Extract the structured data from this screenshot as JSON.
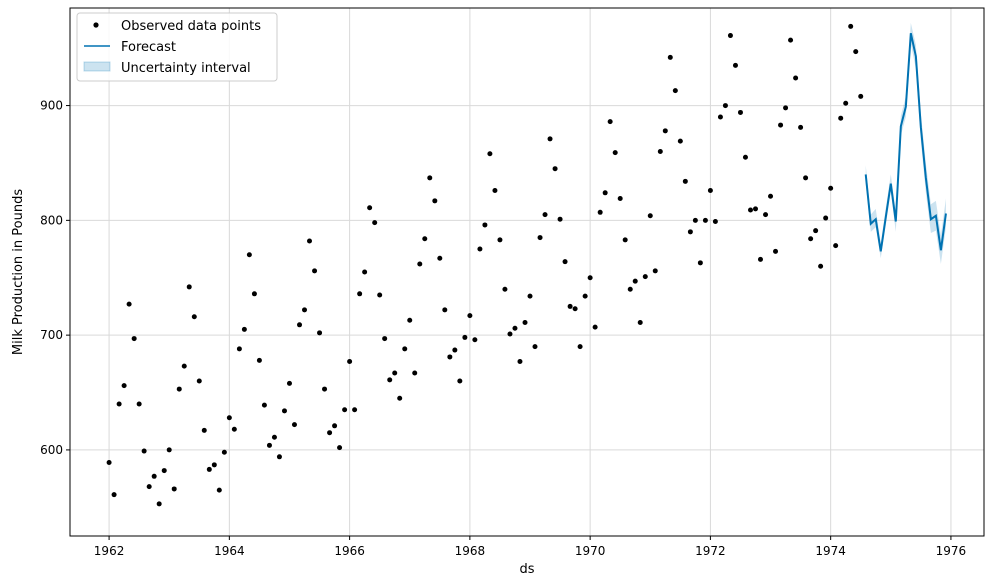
{
  "chart_data": {
    "type": "line",
    "xlabel": "ds",
    "ylabel": "Milk Production in Pounds",
    "xlim": [
      1961.35,
      1976.55
    ],
    "ylim": [
      525,
      985
    ],
    "x_ticks": [
      1962,
      1964,
      1966,
      1968,
      1970,
      1972,
      1974,
      1976
    ],
    "x_tick_labels": [
      "1962",
      "1964",
      "1966",
      "1968",
      "1970",
      "1972",
      "1974",
      "1976"
    ],
    "y_ticks": [
      600,
      700,
      800,
      900
    ],
    "y_tick_labels": [
      "600",
      "700",
      "800",
      "900"
    ],
    "grid": true,
    "legend_position": "top-left",
    "legend": {
      "observed": "Observed data points",
      "forecast": "Forecast",
      "interval": "Uncertainty interval"
    },
    "colors": {
      "observed": "#000000",
      "forecast": "#0072B2",
      "interval": "#0072B2",
      "grid": "#d9d9d9"
    },
    "observed": {
      "x": [
        1962.0,
        1962.083,
        1962.167,
        1962.25,
        1962.333,
        1962.417,
        1962.5,
        1962.583,
        1962.667,
        1962.75,
        1962.833,
        1962.917,
        1963.0,
        1963.083,
        1963.167,
        1963.25,
        1963.333,
        1963.417,
        1963.5,
        1963.583,
        1963.667,
        1963.75,
        1963.833,
        1963.917,
        1964.0,
        1964.083,
        1964.167,
        1964.25,
        1964.333,
        1964.417,
        1964.5,
        1964.583,
        1964.667,
        1964.75,
        1964.833,
        1964.917,
        1965.0,
        1965.083,
        1965.167,
        1965.25,
        1965.333,
        1965.417,
        1965.5,
        1965.583,
        1965.667,
        1965.75,
        1965.833,
        1965.917,
        1966.0,
        1966.083,
        1966.167,
        1966.25,
        1966.333,
        1966.417,
        1966.5,
        1966.583,
        1966.667,
        1966.75,
        1966.833,
        1966.917,
        1967.0,
        1967.083,
        1967.167,
        1967.25,
        1967.333,
        1967.417,
        1967.5,
        1967.583,
        1967.667,
        1967.75,
        1967.833,
        1967.917,
        1968.0,
        1968.083,
        1968.167,
        1968.25,
        1968.333,
        1968.417,
        1968.5,
        1968.583,
        1968.667,
        1968.75,
        1968.833,
        1968.917,
        1969.0,
        1969.083,
        1969.167,
        1969.25,
        1969.333,
        1969.417,
        1969.5,
        1969.583,
        1969.667,
        1969.75,
        1969.833,
        1969.917,
        1970.0,
        1970.083,
        1970.167,
        1970.25,
        1970.333,
        1970.417,
        1970.5,
        1970.583,
        1970.667,
        1970.75,
        1970.833,
        1970.917,
        1971.0,
        1971.083,
        1971.167,
        1971.25,
        1971.333,
        1971.417,
        1971.5,
        1971.583,
        1971.667,
        1971.75,
        1971.833,
        1971.917,
        1972.0,
        1972.083,
        1972.167,
        1972.25,
        1972.333,
        1972.417,
        1972.5,
        1972.583,
        1972.667,
        1972.75,
        1972.833,
        1972.917,
        1973.0,
        1973.083,
        1973.167,
        1973.25,
        1973.333,
        1973.417,
        1973.5,
        1973.583,
        1973.667,
        1973.75,
        1973.833,
        1973.917,
        1974.0,
        1974.083,
        1974.167,
        1974.25,
        1974.333,
        1974.417,
        1974.5
      ],
      "y": [
        589,
        561,
        640,
        656,
        727,
        697,
        640,
        599,
        568,
        577,
        553,
        582,
        600,
        566,
        653,
        673,
        742,
        716,
        660,
        617,
        583,
        587,
        565,
        598,
        628,
        618,
        688,
        705,
        770,
        736,
        678,
        639,
        604,
        611,
        594,
        634,
        658,
        622,
        709,
        722,
        782,
        756,
        702,
        653,
        615,
        621,
        602,
        635,
        677,
        635,
        736,
        755,
        811,
        798,
        735,
        697,
        661,
        667,
        645,
        688,
        713,
        667,
        762,
        784,
        837,
        817,
        767,
        722,
        681,
        687,
        660,
        698,
        717,
        696,
        775,
        796,
        858,
        826,
        783,
        740,
        701,
        706,
        677,
        711,
        734,
        690,
        785,
        805,
        871,
        845,
        801,
        764,
        725,
        723,
        690,
        734,
        750,
        707,
        807,
        824,
        886,
        859,
        819,
        783,
        740,
        747,
        711,
        751,
        804,
        756,
        860,
        878,
        942,
        913,
        869,
        834,
        790,
        800,
        763,
        800,
        826,
        799,
        890,
        900,
        961,
        935,
        894,
        855,
        809,
        810,
        766,
        805,
        821,
        773,
        883,
        898,
        957,
        924,
        881,
        837,
        784,
        791,
        760,
        802,
        828,
        778,
        889,
        902,
        969,
        947,
        908
      ]
    },
    "forecast": {
      "x": [
        1974.583,
        1974.667,
        1974.75,
        1974.833,
        1974.917,
        1975.0,
        1975.083,
        1975.167,
        1975.25,
        1975.333,
        1975.417,
        1975.5,
        1975.583,
        1975.667,
        1975.75,
        1975.833,
        1975.917
      ],
      "yhat": [
        840,
        797,
        801,
        773,
        803,
        832,
        799,
        882,
        899,
        963,
        943,
        881,
        837,
        801,
        804,
        774,
        806
      ],
      "yhat_lower": [
        832,
        790,
        794,
        767,
        796,
        825,
        790,
        874,
        890,
        954,
        932,
        869,
        824,
        789,
        791,
        762,
        794
      ],
      "yhat_upper": [
        848,
        805,
        810,
        780,
        811,
        840,
        808,
        891,
        908,
        972,
        953,
        893,
        850,
        814,
        817,
        787,
        819
      ]
    }
  }
}
